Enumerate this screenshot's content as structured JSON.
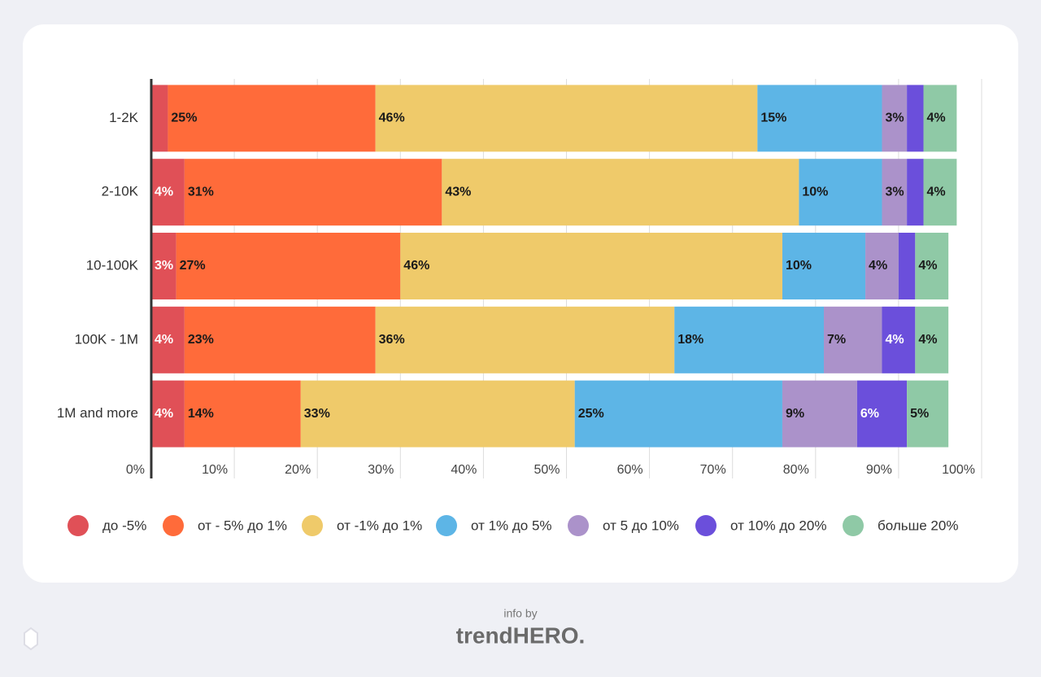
{
  "chart_data": {
    "type": "stacked-bar-horizontal",
    "categories": [
      "1-2K",
      "2-10K",
      "10-100K",
      "100K - 1M",
      "1M and more"
    ],
    "series": [
      {
        "name": "до -5%",
        "color": "#e05057",
        "label_color": "#ffffff",
        "values": [
          2,
          4,
          3,
          4,
          4
        ],
        "value_labels": [
          null,
          "4%",
          "3%",
          "4%",
          "4%"
        ]
      },
      {
        "name": "от - 5% до 1%",
        "color": "#ff6b3a",
        "label_color": "#1a1a1a",
        "values": [
          25,
          31,
          27,
          23,
          14
        ],
        "value_labels": [
          "25%",
          "31%",
          "27%",
          "23%",
          "14%"
        ]
      },
      {
        "name": "от -1% до 1%",
        "color": "#efca6a",
        "label_color": "#1a1a1a",
        "values": [
          46,
          43,
          46,
          36,
          33
        ],
        "value_labels": [
          "46%",
          "43%",
          "46%",
          "36%",
          "33%"
        ]
      },
      {
        "name": "от 1% до 5%",
        "color": "#5db5e6",
        "label_color": "#1a1a1a",
        "values": [
          15,
          10,
          10,
          18,
          25
        ],
        "value_labels": [
          "15%",
          "10%",
          "10%",
          "18%",
          "25%"
        ]
      },
      {
        "name": "от 5 до 10%",
        "color": "#ab92ca",
        "label_color": "#1a1a1a",
        "values": [
          3,
          3,
          4,
          7,
          9
        ],
        "value_labels": [
          "3%",
          "3%",
          "4%",
          "7%",
          "9%"
        ]
      },
      {
        "name": "от 10% до 20%",
        "color": "#6b4fdb",
        "label_color": "#ffffff",
        "values": [
          2,
          2,
          2,
          4,
          6
        ],
        "value_labels": [
          null,
          null,
          null,
          "4%",
          "6%"
        ]
      },
      {
        "name": "больше 20%",
        "color": "#8fc9a6",
        "label_color": "#1a1a1a",
        "values": [
          4,
          4,
          4,
          4,
          5
        ],
        "value_labels": [
          "4%",
          "4%",
          "4%",
          "4%",
          "5%"
        ]
      }
    ],
    "xlim": [
      0,
      100
    ],
    "xticks": [
      {
        "value": 0,
        "label": "0%"
      },
      {
        "value": 10,
        "label": "10%"
      },
      {
        "value": 20,
        "label": "20%"
      },
      {
        "value": 30,
        "label": "30%"
      },
      {
        "value": 40,
        "label": "40%"
      },
      {
        "value": 50,
        "label": "50%"
      },
      {
        "value": 60,
        "label": "60%"
      },
      {
        "value": 70,
        "label": "70%"
      },
      {
        "value": 80,
        "label": "80%"
      },
      {
        "value": 90,
        "label": "90%"
      },
      {
        "value": 100,
        "label": "100%"
      }
    ],
    "grid": true,
    "legend": "bottom"
  },
  "footer": {
    "prefix": "info by",
    "brand": "trendHERO."
  }
}
